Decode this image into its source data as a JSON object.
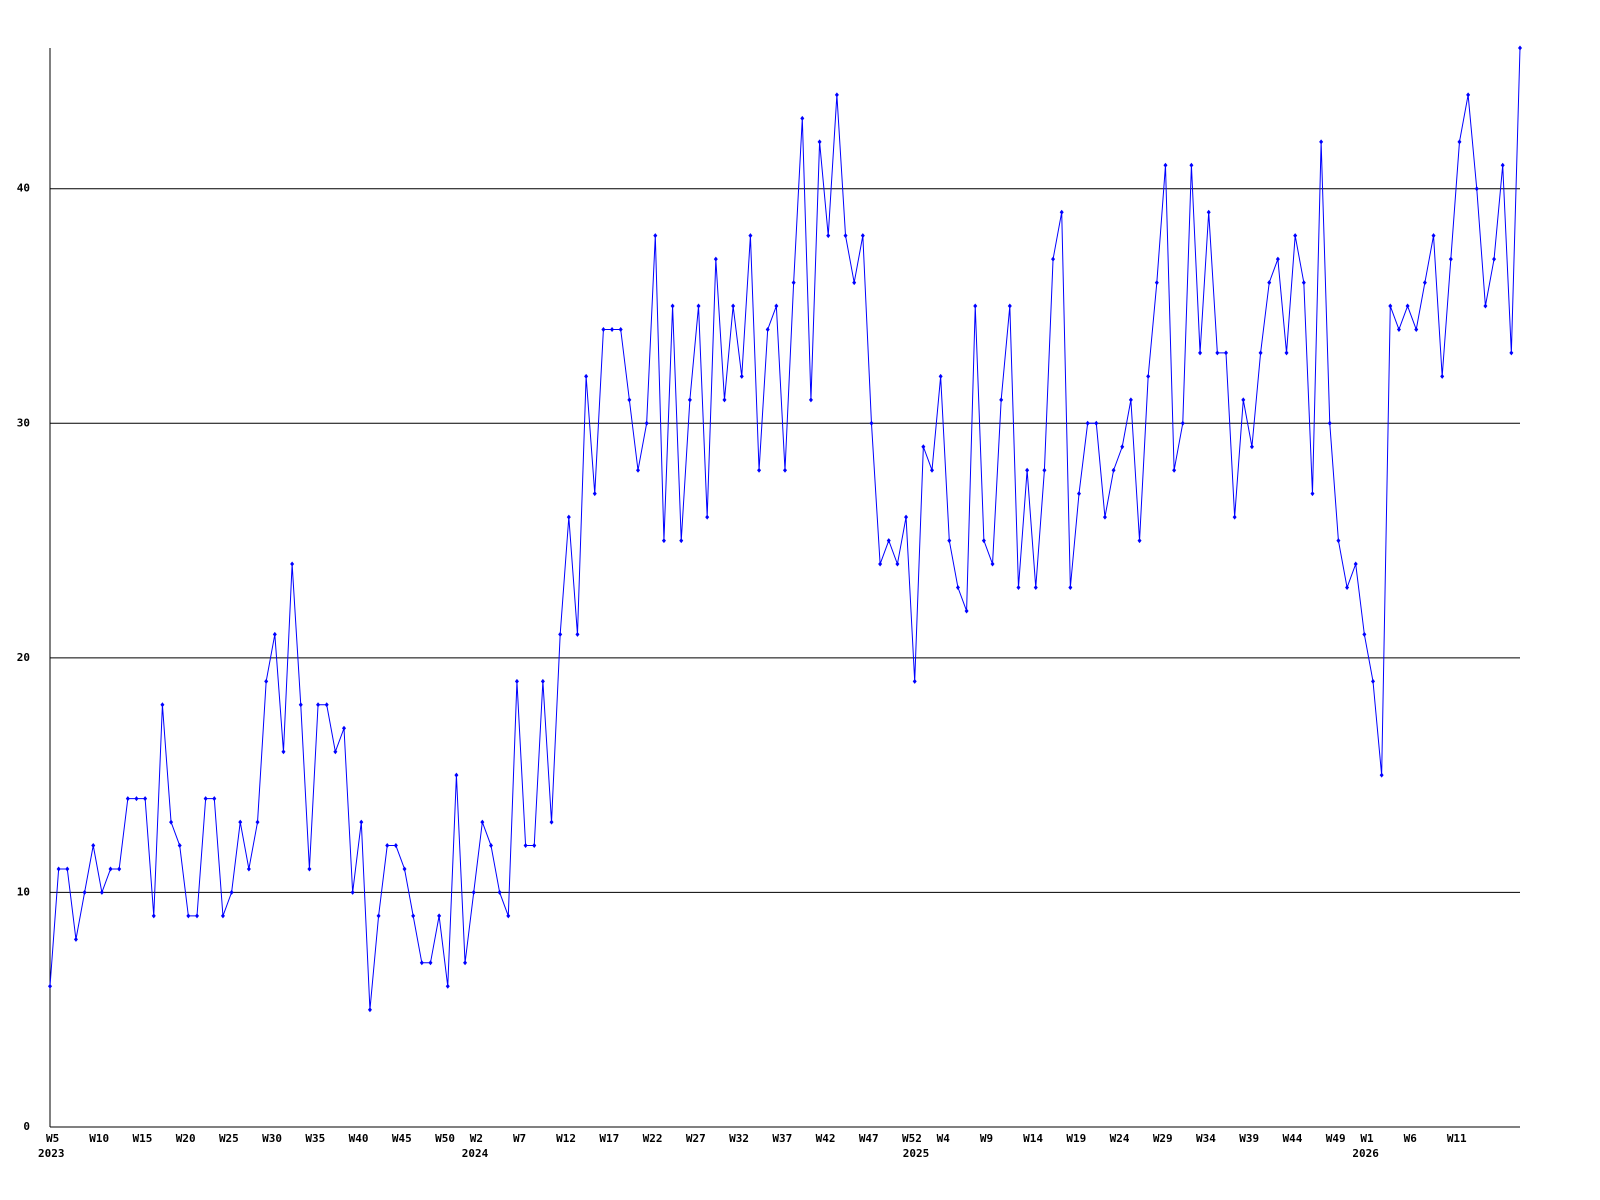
{
  "chart_data": {
    "type": "line",
    "categories": [
      "W5",
      null,
      null,
      null,
      null,
      "W10",
      null,
      null,
      null,
      null,
      "W15",
      null,
      null,
      null,
      null,
      "W20",
      null,
      null,
      null,
      null,
      "W25",
      null,
      null,
      null,
      null,
      "W30",
      null,
      null,
      null,
      null,
      "W35",
      null,
      null,
      null,
      null,
      "W40",
      null,
      null,
      null,
      null,
      "W45",
      null,
      null,
      null,
      null,
      "W50",
      null,
      null,
      null,
      "W2",
      null,
      null,
      null,
      null,
      "W7",
      null,
      null,
      null,
      null,
      "W12",
      null,
      null,
      null,
      null,
      "W17",
      null,
      null,
      null,
      null,
      "W22",
      null,
      null,
      null,
      null,
      "W27",
      null,
      null,
      null,
      null,
      "W32",
      null,
      null,
      null,
      null,
      "W37",
      null,
      null,
      null,
      null,
      "W42",
      null,
      null,
      null,
      null,
      "W47",
      null,
      null,
      null,
      null,
      "W52",
      null,
      null,
      null,
      "W4",
      null,
      null,
      null,
      null,
      "W9",
      null,
      null,
      null,
      null,
      "W14",
      null,
      null,
      null,
      null,
      "W19",
      null,
      null,
      null,
      null,
      "W24",
      null,
      null,
      null,
      null,
      "W29",
      null,
      null,
      null,
      null,
      "W34",
      null,
      null,
      null,
      null,
      "W39",
      null,
      null,
      null,
      null,
      "W44",
      null,
      null,
      null,
      null,
      "W49",
      null,
      null,
      null,
      "W1",
      null,
      null,
      null,
      null,
      "W6",
      null,
      null,
      null,
      null,
      "W11",
      null,
      null,
      null,
      null,
      null,
      null,
      null,
      null
    ],
    "category_years": [
      "2023",
      null,
      null,
      null,
      null,
      null,
      null,
      null,
      null,
      null,
      null,
      null,
      null,
      null,
      null,
      null,
      null,
      null,
      null,
      null,
      null,
      null,
      null,
      null,
      null,
      null,
      null,
      null,
      null,
      null,
      null,
      null,
      null,
      null,
      null,
      null,
      null,
      null,
      null,
      null,
      null,
      null,
      null,
      null,
      null,
      null,
      null,
      null,
      null,
      "2024",
      null,
      null,
      null,
      null,
      null,
      null,
      null,
      null,
      null,
      null,
      null,
      null,
      null,
      null,
      null,
      null,
      null,
      null,
      null,
      null,
      null,
      null,
      null,
      null,
      null,
      null,
      null,
      null,
      null,
      null,
      null,
      null,
      null,
      null,
      null,
      null,
      null,
      null,
      null,
      null,
      null,
      null,
      null,
      null,
      null,
      null,
      null,
      null,
      null,
      null,
      "2025",
      null,
      null,
      null,
      null,
      null,
      null,
      null,
      null,
      null,
      null,
      null,
      null,
      null,
      null,
      null,
      null,
      null,
      null,
      null,
      null,
      null,
      null,
      null,
      null,
      null,
      null,
      null,
      null,
      null,
      null,
      null,
      null,
      null,
      null,
      null,
      null,
      null,
      null,
      null,
      null,
      null,
      null,
      null,
      null,
      null,
      null,
      null,
      null,
      null,
      null,
      null,
      "2026",
      null,
      null,
      null,
      null,
      null,
      null,
      null,
      null,
      null,
      null,
      null,
      null,
      null,
      null,
      null,
      null,
      null,
      null
    ],
    "series": [
      {
        "color": "#0000ff",
        "values": [
          6,
          11,
          11,
          8,
          10,
          12,
          10,
          11,
          11,
          14,
          14,
          14,
          9,
          18,
          13,
          12,
          9,
          9,
          14,
          14,
          9,
          10,
          13,
          11,
          13,
          19,
          21,
          16,
          24,
          18,
          11,
          18,
          18,
          16,
          17,
          10,
          13,
          5,
          9,
          12,
          12,
          11,
          9,
          7,
          7,
          9,
          6,
          15,
          7,
          10,
          13,
          12,
          10,
          9,
          19,
          12,
          12,
          19,
          13,
          21,
          26,
          21,
          32,
          27,
          34,
          34,
          34,
          31,
          28,
          30,
          38,
          25,
          35,
          25,
          31,
          35,
          26,
          37,
          31,
          35,
          32,
          38,
          28,
          34,
          35,
          28,
          36,
          43,
          31,
          42,
          38,
          44,
          38,
          36,
          38,
          30,
          24,
          25,
          24,
          26,
          19,
          29,
          28,
          32,
          25,
          23,
          22,
          35,
          25,
          24,
          31,
          35,
          23,
          28,
          23,
          28,
          37,
          39,
          23,
          27,
          30,
          30,
          26,
          28,
          29,
          31,
          25,
          32,
          36,
          41,
          28,
          30,
          41,
          33,
          39,
          33,
          33,
          26,
          31,
          29,
          33,
          36,
          37,
          33,
          38,
          36,
          27,
          42,
          30,
          25,
          23,
          24,
          21,
          19,
          15,
          35,
          34,
          35,
          34,
          36,
          38,
          32,
          37,
          42,
          44,
          40,
          35,
          37,
          41,
          33,
          46
        ]
      }
    ],
    "ylim": [
      0,
      46
    ],
    "yticks": [
      0,
      10,
      20,
      30,
      40
    ],
    "grid": true
  }
}
